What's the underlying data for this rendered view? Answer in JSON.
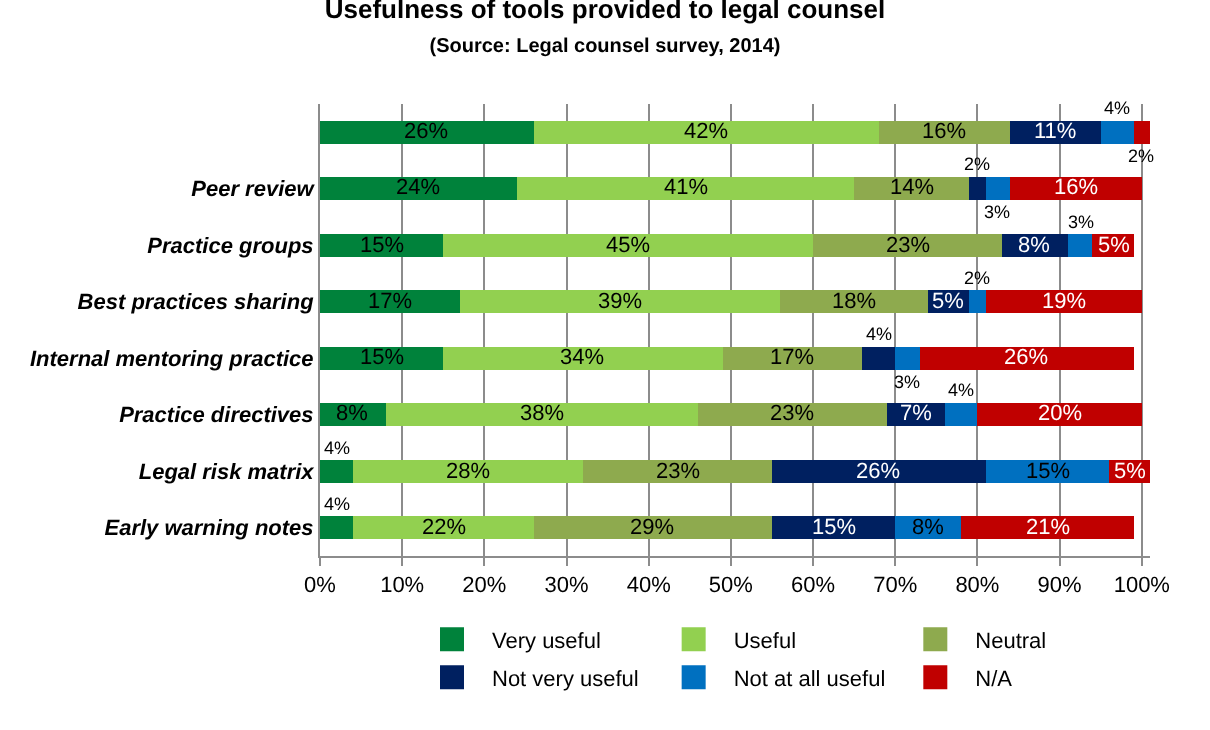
{
  "chart_data": {
    "type": "bar",
    "orientation": "horizontal",
    "stacked": true,
    "title": "Usefulness of tools provided to legal counsel",
    "subtitle": "(Source: Legal counsel survey, 2014)",
    "categories": [
      null,
      "Peer review",
      "Practice groups",
      "Best practices sharing",
      "Internal mentoring practice",
      "Practice directives",
      "Legal risk matrix",
      "Early warning notes"
    ],
    "series": [
      {
        "name": "Very useful",
        "color": "#00823b",
        "values": [
          26,
          24,
          15,
          17,
          15,
          8,
          4,
          4
        ],
        "value_labels": [
          "26%",
          "24%",
          "15%",
          "17%",
          "15%",
          "8%",
          "4%",
          "4%"
        ]
      },
      {
        "name": "Useful",
        "color": "#92d050",
        "values": [
          42,
          41,
          45,
          39,
          34,
          38,
          28,
          22
        ],
        "value_labels": [
          "42%",
          "41%",
          "45%",
          "39%",
          "34%",
          "38%",
          "28%",
          "22%"
        ]
      },
      {
        "name": "Neutral",
        "color": "#8eaa4e",
        "values": [
          16,
          14,
          23,
          18,
          17,
          23,
          23,
          29
        ],
        "value_labels": [
          "16%",
          "14%",
          "23%",
          "18%",
          "17%",
          "23%",
          "23%",
          "29%"
        ]
      },
      {
        "name": "Not very useful",
        "color": "#002060",
        "values": [
          11,
          2,
          8,
          5,
          4,
          7,
          26,
          15
        ],
        "value_labels": [
          "11%",
          "2%",
          "8%",
          "5%",
          "4%",
          "7%",
          "26%",
          "15%"
        ]
      },
      {
        "name": "Not at all useful",
        "color": "#0070c0",
        "values": [
          4,
          3,
          3,
          2,
          3,
          4,
          15,
          8
        ],
        "value_labels": [
          "4%",
          "3%",
          "3%",
          "2%",
          "3%",
          "4%",
          "15%",
          "8%"
        ]
      },
      {
        "name": "N/A",
        "color": "#c00000",
        "values": [
          2,
          16,
          5,
          19,
          26,
          20,
          5,
          21
        ],
        "value_labels": [
          "2%",
          "16%",
          "5%",
          "19%",
          "26%",
          "20%",
          "5%",
          "21%"
        ]
      }
    ],
    "xlim": [
      0,
      101
    ],
    "xticks": [
      {
        "value": 0,
        "label": "0%"
      },
      {
        "value": 10,
        "label": "10%"
      },
      {
        "value": 20,
        "label": "20%"
      },
      {
        "value": 30,
        "label": "30%"
      },
      {
        "value": 40,
        "label": "40%"
      },
      {
        "value": 50,
        "label": "50%"
      },
      {
        "value": 60,
        "label": "60%"
      },
      {
        "value": 70,
        "label": "70%"
      },
      {
        "value": 80,
        "label": "80%"
      },
      {
        "value": 90,
        "label": "90%"
      },
      {
        "value": 100,
        "label": "100%"
      }
    ],
    "grid": "x",
    "legend": "bottom"
  }
}
